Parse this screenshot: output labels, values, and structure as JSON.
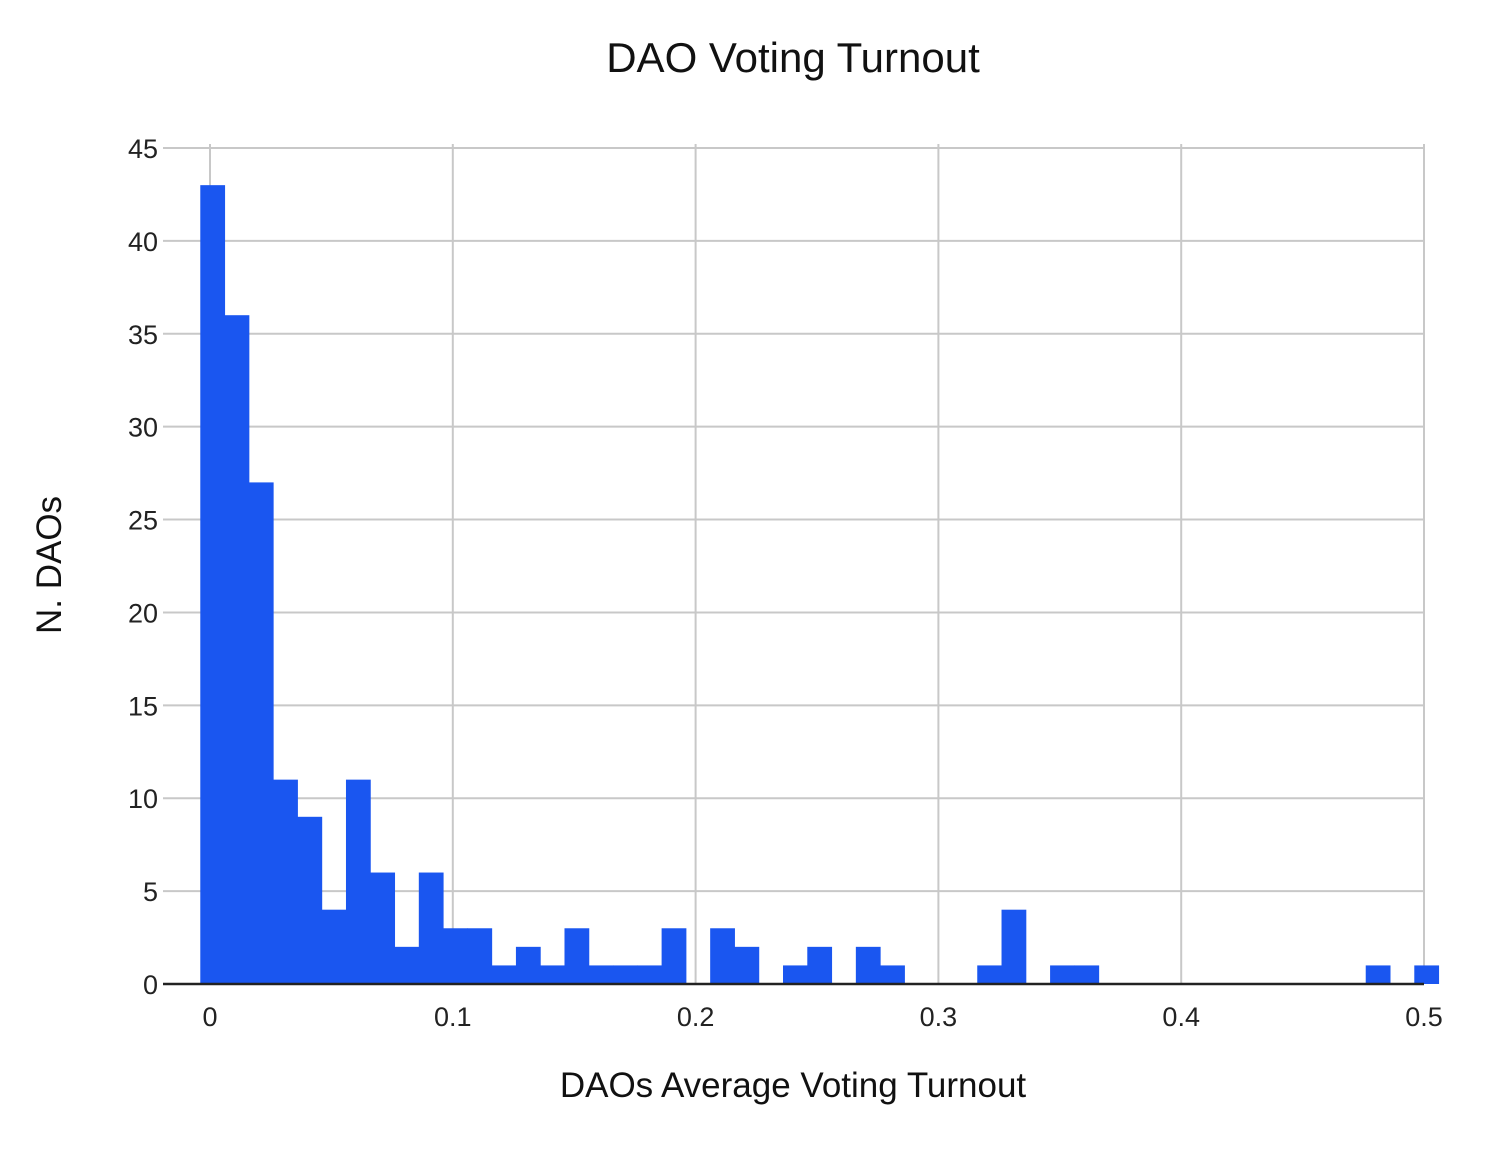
{
  "chart_data": {
    "type": "bar",
    "title": "DAO Voting Turnout",
    "xlabel": "DAOs Average Voting Turnout",
    "ylabel": "N. DAOs",
    "xlim": [
      0,
      0.5
    ],
    "ylim": [
      0,
      45
    ],
    "xticks": [
      "0",
      "0.1",
      "0.2",
      "0.3",
      "0.4",
      "0.5"
    ],
    "yticks": [
      "0",
      "5",
      "10",
      "15",
      "20",
      "25",
      "30",
      "35",
      "40",
      "45"
    ],
    "grid": true,
    "bar_color": "#1a56f0",
    "bin_width": 0.01,
    "bins": [
      {
        "x0": -0.004,
        "value": 43
      },
      {
        "x0": 0.006,
        "value": 36
      },
      {
        "x0": 0.016,
        "value": 27
      },
      {
        "x0": 0.026,
        "value": 11
      },
      {
        "x0": 0.036,
        "value": 9
      },
      {
        "x0": 0.046,
        "value": 4
      },
      {
        "x0": 0.056,
        "value": 11
      },
      {
        "x0": 0.066,
        "value": 6
      },
      {
        "x0": 0.076,
        "value": 2
      },
      {
        "x0": 0.086,
        "value": 6
      },
      {
        "x0": 0.096,
        "value": 3
      },
      {
        "x0": 0.106,
        "value": 3
      },
      {
        "x0": 0.116,
        "value": 1
      },
      {
        "x0": 0.126,
        "value": 2
      },
      {
        "x0": 0.136,
        "value": 1
      },
      {
        "x0": 0.146,
        "value": 3
      },
      {
        "x0": 0.156,
        "value": 1
      },
      {
        "x0": 0.166,
        "value": 1
      },
      {
        "x0": 0.176,
        "value": 1
      },
      {
        "x0": 0.186,
        "value": 3
      },
      {
        "x0": 0.206,
        "value": 3
      },
      {
        "x0": 0.216,
        "value": 2
      },
      {
        "x0": 0.236,
        "value": 1
      },
      {
        "x0": 0.246,
        "value": 2
      },
      {
        "x0": 0.266,
        "value": 2
      },
      {
        "x0": 0.276,
        "value": 1
      },
      {
        "x0": 0.316,
        "value": 1
      },
      {
        "x0": 0.326,
        "value": 4
      },
      {
        "x0": 0.346,
        "value": 1
      },
      {
        "x0": 0.356,
        "value": 1
      },
      {
        "x0": 0.476,
        "value": 1
      },
      {
        "x0": 0.496,
        "value": 1
      }
    ]
  }
}
